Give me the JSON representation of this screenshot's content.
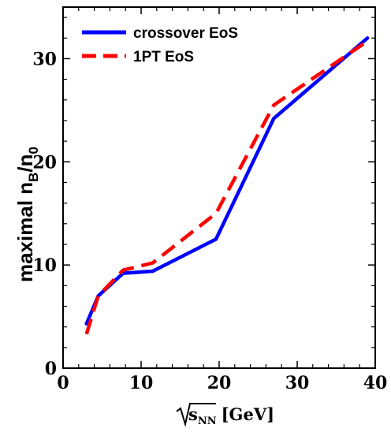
{
  "chart_data": {
    "type": "line",
    "xlabel": {
      "base": "s",
      "subscript": "NN",
      "unit": "[GeV]"
    },
    "ylabel": {
      "prefix": "maximal n",
      "sub1": "B",
      "middle": "/n",
      "sub2": "0"
    },
    "xlim": [
      0,
      40
    ],
    "ylim": [
      0,
      35
    ],
    "xticks": [
      0,
      10,
      20,
      30,
      40
    ],
    "yticks": [
      0,
      10,
      20,
      30
    ],
    "legend_position": "top-left",
    "series": [
      {
        "name": "crossover EoS",
        "color": "#0000ff",
        "dash": "solid",
        "x": [
          3.0,
          4.5,
          7.7,
          11.5,
          19.6,
          27.0,
          39.0
        ],
        "y": [
          4.3,
          7.0,
          9.2,
          9.4,
          12.5,
          24.2,
          32.0
        ]
      },
      {
        "name": "1PT EoS",
        "color": "#ff0000",
        "dash": "dashed",
        "x": [
          3.0,
          4.5,
          7.7,
          11.5,
          19.6,
          27.0,
          39.0
        ],
        "y": [
          3.3,
          7.0,
          9.5,
          10.2,
          15.0,
          25.5,
          31.7
        ]
      }
    ]
  }
}
